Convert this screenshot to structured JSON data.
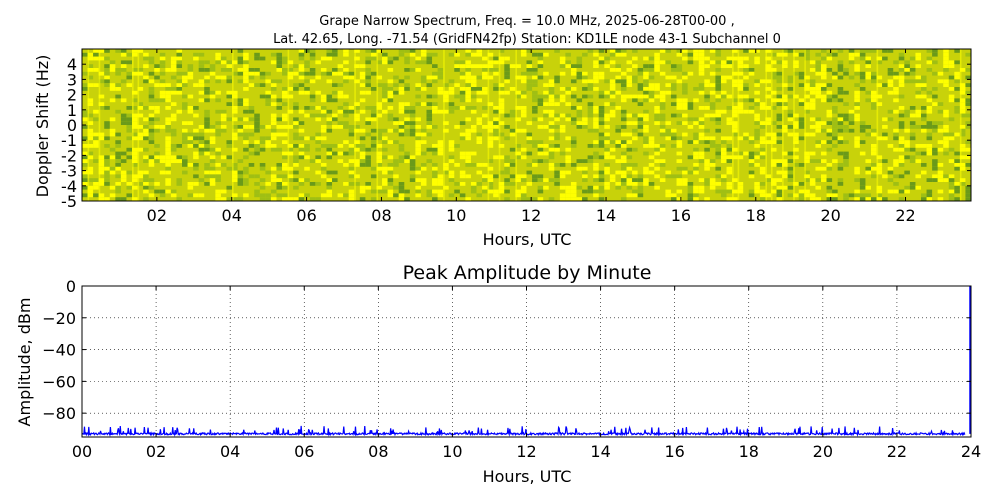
{
  "chart_data": [
    {
      "type": "heatmap",
      "title_line1": "Grape Narrow Spectrum, Freq. = 10.0 MHz, 2025-06-28T00-00 ,",
      "title_line2": "Lat.  42.65, Long. -71.54 (GridFN42fp) Station: KD1LE node 43-1 Subchannel 0",
      "xlabel": "Hours, UTC",
      "ylabel": "Doppler Shift (Hz)",
      "xlim": [
        0,
        23.75
      ],
      "ylim": [
        -5,
        5
      ],
      "x_ticks": [
        "02",
        "04",
        "06",
        "08",
        "10",
        "12",
        "14",
        "16",
        "18",
        "20",
        "22"
      ],
      "y_ticks": [
        "4",
        "3",
        "2",
        "1",
        "0",
        "-1",
        "-2",
        "-3",
        "-4",
        "-5"
      ],
      "grid": false,
      "colors": {
        "base": "#c8d20a",
        "bright": "#ffff00",
        "dark": "#6a9a1a"
      }
    },
    {
      "type": "line",
      "title": "Peak Amplitude by Minute",
      "xlabel": "Hours, UTC",
      "ylabel": "Amplitude, dBm",
      "xlim": [
        0,
        24
      ],
      "ylim": [
        -95,
        0
      ],
      "x_ticks": [
        "00",
        "02",
        "04",
        "06",
        "08",
        "10",
        "12",
        "14",
        "16",
        "18",
        "20",
        "22",
        "24"
      ],
      "y_ticks": [
        "0",
        "−20",
        "−40",
        "−60",
        "−80"
      ],
      "grid": true,
      "baseline": -93,
      "end_value": 0,
      "series": [
        {
          "color": "#0000ff"
        }
      ]
    }
  ]
}
